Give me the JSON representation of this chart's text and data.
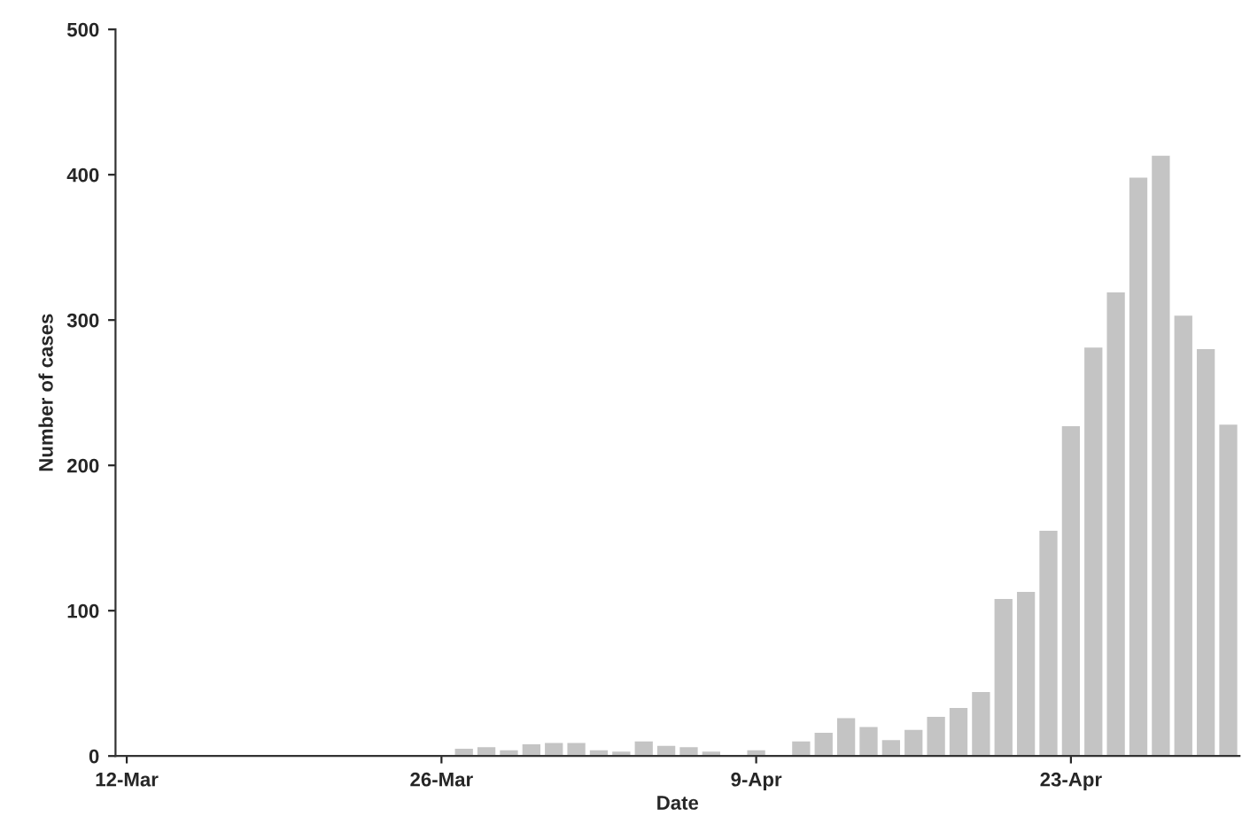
{
  "chart_data": {
    "type": "bar",
    "xlabel": "Date",
    "ylabel": "Number of cases",
    "categories": [
      "12-Mar",
      null,
      null,
      null,
      null,
      null,
      null,
      null,
      null,
      null,
      null,
      null,
      null,
      null,
      "26-Mar",
      null,
      null,
      null,
      null,
      null,
      null,
      null,
      null,
      null,
      null,
      null,
      null,
      null,
      "9-Apr",
      null,
      null,
      null,
      null,
      null,
      null,
      null,
      null,
      null,
      null,
      null,
      null,
      null,
      "23-Apr",
      null,
      null,
      null,
      null,
      null,
      null,
      null
    ],
    "values": [
      0,
      0,
      0,
      0,
      0,
      0,
      0,
      0,
      0,
      0,
      0,
      null,
      null,
      0,
      null,
      5,
      6,
      4,
      8,
      9,
      9,
      4,
      3,
      10,
      7,
      6,
      3,
      null,
      4,
      null,
      10,
      16,
      26,
      20,
      11,
      18,
      27,
      33,
      44,
      108,
      113,
      155,
      227,
      281,
      319,
      398,
      413,
      303,
      280,
      228
    ],
    "color": "#c4c4c4",
    "ylim": [
      0,
      500
    ],
    "yticks": [
      0,
      100,
      200,
      300,
      400,
      500
    ],
    "grid": false
  }
}
